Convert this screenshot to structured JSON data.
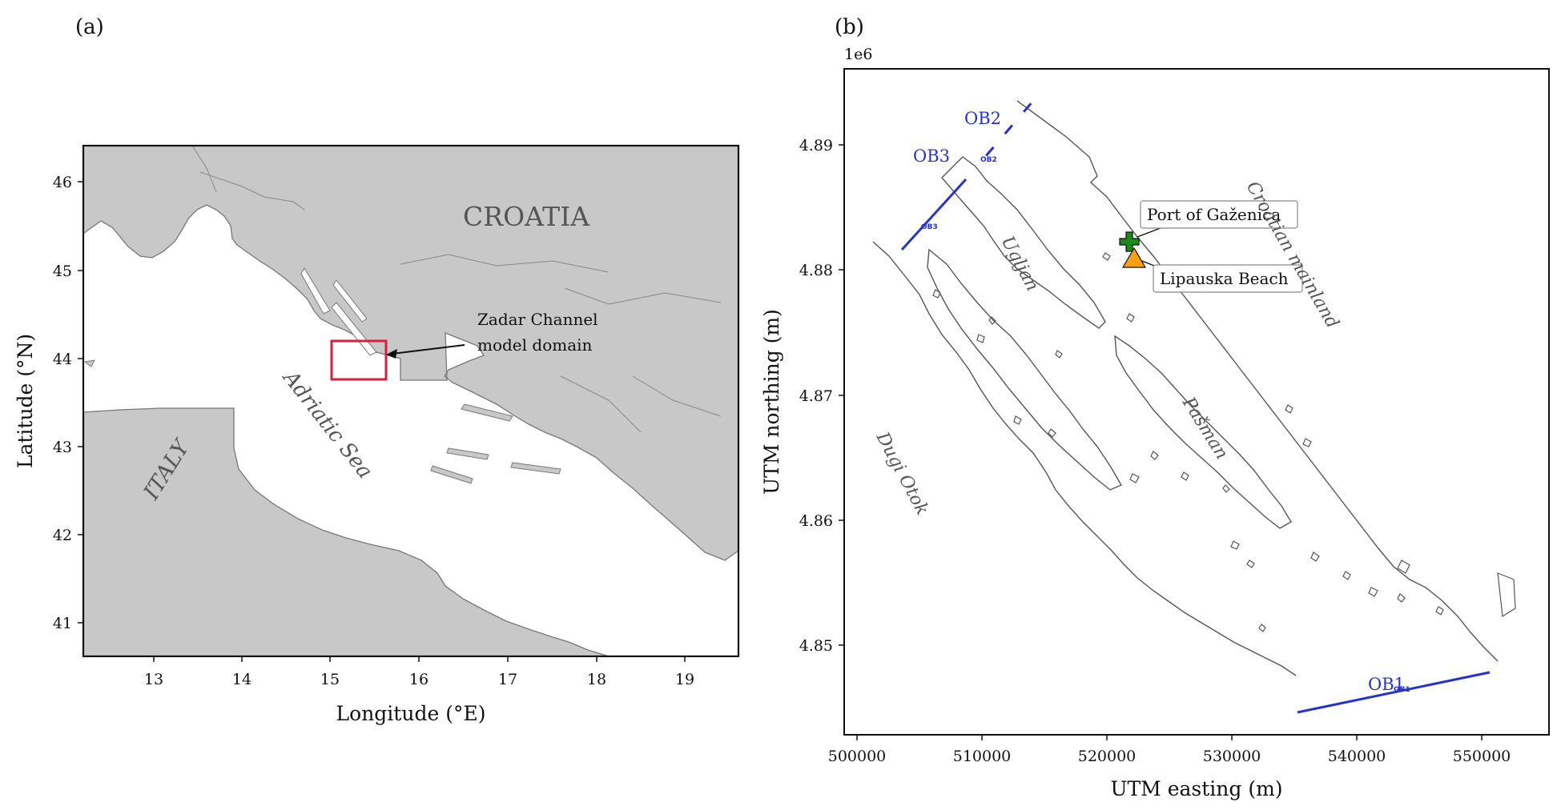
{
  "panel_a": {
    "label": "(a)",
    "xlabel": "Longitude (°E)",
    "ylabel": "Latitude (°N)",
    "x_ticks": [
      "13",
      "14",
      "15",
      "16",
      "17",
      "18",
      "19"
    ],
    "y_ticks": [
      "46",
      "45",
      "44",
      "43",
      "42",
      "41"
    ],
    "places": {
      "croatia": "CROATIA",
      "italy": "ITALY",
      "sea": "Adriatic Sea"
    },
    "annotation_line1": "Zadar Channel",
    "annotation_line2": "model domain",
    "colors": {
      "land": "#c8c8c8",
      "coast": "#777777",
      "box": "#d6203f"
    }
  },
  "panel_b": {
    "label": "(b)",
    "offset": "1e6",
    "xlabel": "UTM easting (m)",
    "ylabel": "UTM northing (m)",
    "x_ticks": [
      "500000",
      "510000",
      "520000",
      "530000",
      "540000",
      "550000"
    ],
    "y_ticks": [
      "4.89",
      "4.88",
      "4.87",
      "4.86",
      "4.85"
    ],
    "places": {
      "ugljan": "Ugljan",
      "pasman": "Pašman",
      "dugi_otok": "Dugi Otok",
      "mainland": "Croatian mainland"
    },
    "boundaries": {
      "ob1": "OB1",
      "ob2": "OB2",
      "ob3": "OB3"
    },
    "markers": {
      "port": "Port of Gaženica",
      "beach": "Lipauska Beach"
    },
    "colors": {
      "boundary": "#2433cc",
      "port": "#1a8a1a",
      "beach": "#f5a016",
      "coast": "#555555"
    }
  }
}
